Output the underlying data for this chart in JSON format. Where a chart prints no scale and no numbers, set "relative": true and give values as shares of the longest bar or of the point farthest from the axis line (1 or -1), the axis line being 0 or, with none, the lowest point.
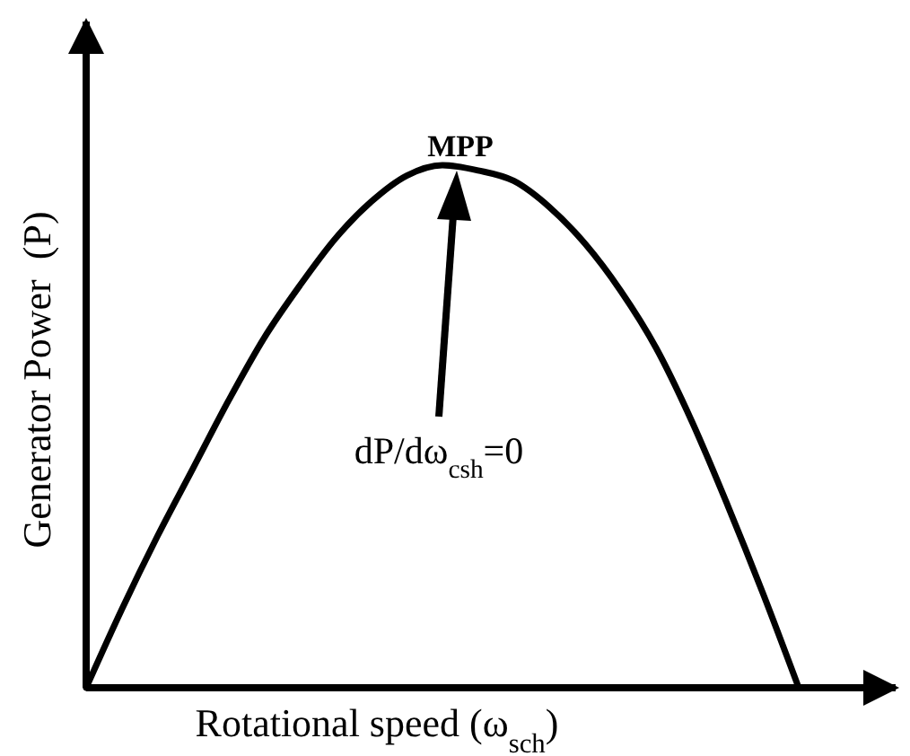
{
  "chart_data": {
    "type": "line",
    "relative": true,
    "xlabel": "Rotational speed (ω$_{sch}$)",
    "ylabel": "Generator Power  (P)",
    "categories": [
      null,
      null,
      null,
      null,
      null,
      null,
      null,
      null,
      null,
      null,
      null,
      null,
      null,
      null,
      null,
      null,
      null,
      null,
      null,
      null,
      null
    ],
    "series": [
      {
        "color": "#000000",
        "values": [
          0,
          0.15,
          0.29,
          0.42,
          0.55,
          0.67,
          0.77,
          0.86,
          0.93,
          0.98,
          1,
          0.99,
          0.97,
          0.92,
          0.85,
          0.76,
          0.65,
          0.51,
          0.35,
          0.18,
          0
        ]
      }
    ],
    "annotations": [
      "MPP",
      "dP/dω$_{csh}$=0"
    ],
    "marker": "none",
    "line_style": "solid"
  }
}
